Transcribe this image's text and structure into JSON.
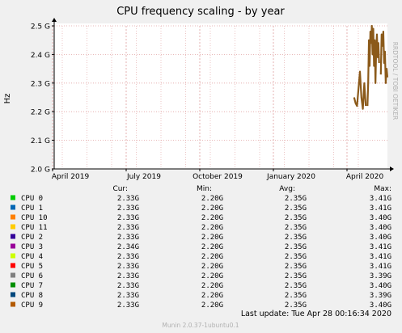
{
  "chart_data": {
    "type": "line",
    "title": "CPU frequency scaling - by year",
    "ylabel": "Hz",
    "side_label": "RRDTOOL / TOBI OETIKER",
    "yticks": [
      "2.0 G",
      "2.1 G",
      "2.2 G",
      "2.3 G",
      "2.4 G",
      "2.5 G"
    ],
    "ytick_values": [
      2.0,
      2.1,
      2.2,
      2.3,
      2.4,
      2.5
    ],
    "ylim": [
      2.0,
      2.5
    ],
    "xticks": [
      "April 2019",
      "July 2019",
      "October 2019",
      "January 2020",
      "April 2020"
    ],
    "grid": true,
    "series_segments": [
      {
        "start": 0.9,
        "end": 0.935,
        "points": [
          2.25,
          2.23,
          2.22,
          2.28,
          2.34,
          2.25,
          2.21,
          2.3,
          2.22
        ]
      },
      {
        "start": 0.94,
        "end": 0.975,
        "points": [
          2.22,
          2.3,
          2.45,
          2.36,
          2.48,
          2.44,
          2.5,
          2.4,
          2.49,
          2.36,
          2.45,
          2.3,
          2.42,
          2.47,
          2.39,
          2.44,
          2.37
        ]
      },
      {
        "start": 0.98,
        "end": 1.0,
        "points": [
          2.33,
          2.47,
          2.43,
          2.48,
          2.37,
          2.41,
          2.3,
          2.35,
          2.32
        ]
      }
    ]
  },
  "legend": {
    "headers": {
      "cur": "Cur:",
      "min": "Min:",
      "avg": "Avg:",
      "max": "Max:"
    },
    "rows": [
      {
        "name": "CPU 0",
        "color": "#00cc00",
        "cur": "2.33G",
        "min": "2.20G",
        "avg": "2.35G",
        "max": "3.41G"
      },
      {
        "name": "CPU 1",
        "color": "#0066b3",
        "cur": "2.33G",
        "min": "2.20G",
        "avg": "2.35G",
        "max": "3.41G"
      },
      {
        "name": "CPU 10",
        "color": "#ff8000",
        "cur": "2.33G",
        "min": "2.20G",
        "avg": "2.35G",
        "max": "3.40G"
      },
      {
        "name": "CPU 11",
        "color": "#ffcc00",
        "cur": "2.33G",
        "min": "2.20G",
        "avg": "2.35G",
        "max": "3.40G"
      },
      {
        "name": "CPU 2",
        "color": "#330099",
        "cur": "2.33G",
        "min": "2.20G",
        "avg": "2.35G",
        "max": "3.40G"
      },
      {
        "name": "CPU 3",
        "color": "#990099",
        "cur": "2.34G",
        "min": "2.20G",
        "avg": "2.35G",
        "max": "3.41G"
      },
      {
        "name": "CPU 4",
        "color": "#ccff00",
        "cur": "2.33G",
        "min": "2.20G",
        "avg": "2.35G",
        "max": "3.41G"
      },
      {
        "name": "CPU 5",
        "color": "#ff0000",
        "cur": "2.33G",
        "min": "2.20G",
        "avg": "2.35G",
        "max": "3.41G"
      },
      {
        "name": "CPU 6",
        "color": "#808080",
        "cur": "2.33G",
        "min": "2.20G",
        "avg": "2.35G",
        "max": "3.39G"
      },
      {
        "name": "CPU 7",
        "color": "#008f00",
        "cur": "2.33G",
        "min": "2.20G",
        "avg": "2.35G",
        "max": "3.40G"
      },
      {
        "name": "CPU 8",
        "color": "#00487d",
        "cur": "2.33G",
        "min": "2.20G",
        "avg": "2.35G",
        "max": "3.39G"
      },
      {
        "name": "CPU 9",
        "color": "#b35a00",
        "cur": "2.33G",
        "min": "2.20G",
        "avg": "2.35G",
        "max": "3.40G"
      }
    ]
  },
  "footer": {
    "last_update": "Last update: Tue Apr 28 00:16:34 2020",
    "munin_version": "Munin 2.0.37-1ubuntu0.1"
  },
  "colors": {
    "background": "#f0f0f0",
    "plot_background": "#ffffff",
    "grid": "#e0a0a0",
    "axis": "#000000",
    "line_color": "#8b5a1a"
  }
}
